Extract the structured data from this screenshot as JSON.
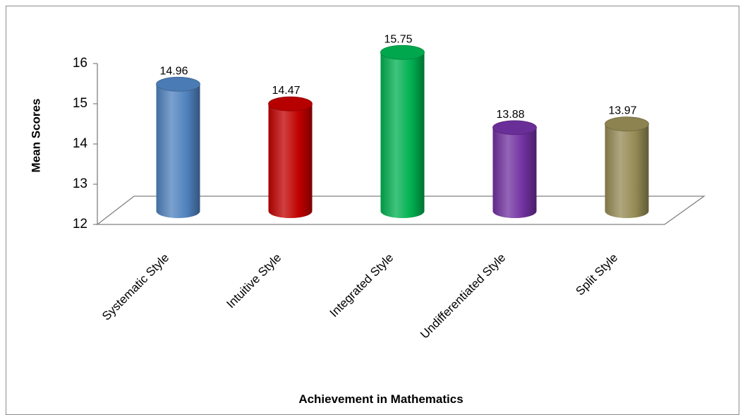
{
  "chart_data": {
    "type": "bar",
    "style": "3d-cylinder",
    "categories": [
      "Systematic Style",
      "Intuitive Style",
      "Integrated Style",
      "Undifferentiated Style",
      "Split Style"
    ],
    "values": [
      14.96,
      14.47,
      15.75,
      13.88,
      13.97
    ],
    "value_labels": [
      "14.96",
      "14.47",
      "15.75",
      "13.88",
      "13.97"
    ],
    "colors": [
      "#4f81bd",
      "#c00000",
      "#00b050",
      "#7030a0",
      "#948a54"
    ],
    "xlabel": "Achievement in Mathematics",
    "ylabel": "Mean Scores",
    "ylim": [
      12,
      16
    ],
    "yticks": [
      12,
      13,
      14,
      15,
      16
    ],
    "grid": false,
    "legend": "none"
  }
}
